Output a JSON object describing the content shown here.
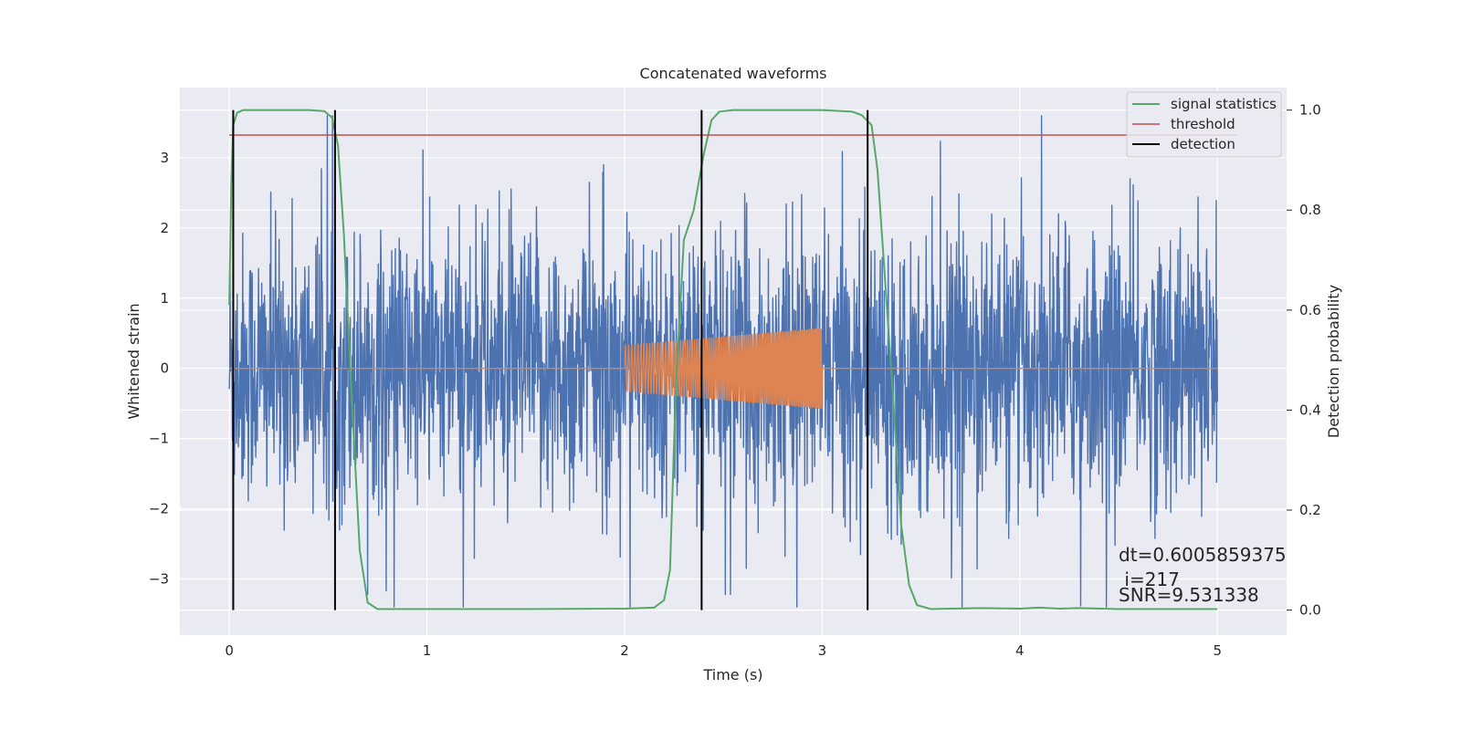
{
  "chart_data": {
    "type": "line",
    "title": "Concatenated waveforms",
    "xlabel": "Time (s)",
    "ylabel_left": "Whitened strain",
    "ylabel_right": "Detection probability",
    "xlim": [
      -0.25,
      5.35
    ],
    "ylim_left": [
      -3.8,
      4.0
    ],
    "ylim_right": [
      -0.05,
      1.045
    ],
    "x_ticks": [
      0,
      1,
      2,
      3,
      4,
      5
    ],
    "y_left_ticks": [
      -3,
      -2,
      -1,
      0,
      1,
      2,
      3
    ],
    "y_right_ticks": [
      0.0,
      0.2,
      0.4,
      0.6,
      0.8,
      1.0
    ],
    "x_tick_labels": [
      "0",
      "1",
      "2",
      "3",
      "4",
      "5"
    ],
    "y_left_tick_labels": [
      "−3",
      "−2",
      "−1",
      "0",
      "1",
      "2",
      "3"
    ],
    "y_right_tick_labels": [
      "0.0",
      "0.2",
      "0.4",
      "0.6",
      "0.8",
      "1.0"
    ],
    "grid": true,
    "legend_position": "top-right",
    "colors": {
      "background": "#eaeaf2",
      "grid": "#ffffff",
      "strain": "#4c72b0",
      "injected": "#dd8452",
      "signal_statistics": "#55a868",
      "threshold": "#c44e52",
      "detection": "#000000"
    },
    "series": [
      {
        "name": "",
        "axis": "left",
        "kind": "noise",
        "x_range": [
          0,
          5
        ],
        "color": "#4c72b0"
      },
      {
        "name": "",
        "axis": "left",
        "kind": "chirp",
        "x_range": [
          2,
          3
        ],
        "amplitude_range": [
          0.33,
          0.58
        ],
        "color": "#dd8452"
      },
      {
        "name": "signal statistics",
        "axis": "right",
        "x": [
          0.0,
          0.01,
          0.02,
          0.04,
          0.07,
          0.12,
          0.2,
          0.3,
          0.4,
          0.48,
          0.52,
          0.55,
          0.58,
          0.62,
          0.66,
          0.7,
          0.75,
          1.0,
          1.5,
          2.0,
          2.15,
          2.2,
          2.23,
          2.26,
          2.3,
          2.35,
          2.4,
          2.44,
          2.48,
          2.55,
          2.7,
          3.0,
          3.15,
          3.2,
          3.25,
          3.28,
          3.32,
          3.36,
          3.4,
          3.44,
          3.48,
          3.55,
          3.8,
          4.0,
          4.1,
          4.2,
          4.3,
          4.5,
          5.0
        ],
        "values": [
          0.61,
          0.85,
          0.97,
          0.995,
          1.0,
          1.0,
          1.0,
          1.0,
          1.0,
          0.998,
          0.985,
          0.93,
          0.75,
          0.42,
          0.12,
          0.015,
          0.002,
          0.002,
          0.002,
          0.003,
          0.005,
          0.02,
          0.08,
          0.45,
          0.74,
          0.8,
          0.91,
          0.98,
          0.997,
          1.0,
          1.0,
          1.0,
          0.997,
          0.99,
          0.97,
          0.88,
          0.65,
          0.42,
          0.17,
          0.05,
          0.01,
          0.002,
          0.004,
          0.003,
          0.005,
          0.003,
          0.004,
          0.002,
          0.002
        ],
        "color": "#55a868"
      },
      {
        "name": "threshold",
        "axis": "right",
        "x": [
          0.0,
          5.1
        ],
        "values": [
          0.95,
          0.95
        ],
        "color": "#c44e52"
      },
      {
        "name": "detection",
        "axis": "right",
        "kind": "vlines",
        "x": [
          0.02,
          0.535,
          2.39,
          3.23
        ],
        "ymin": 0.0,
        "ymax": 1.0,
        "color": "#000000"
      }
    ],
    "annotation": {
      "dt": "dt=0.6005859375",
      "i": " i=217",
      "snr": "SNR=9.531338",
      "x": 4.5
    }
  }
}
